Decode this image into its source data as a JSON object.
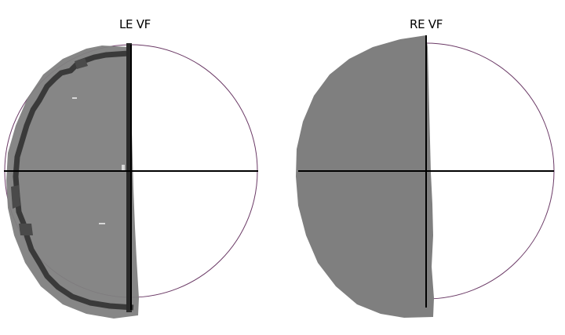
{
  "figure": {
    "panels": [
      {
        "title": "LE VF"
      },
      {
        "title": "RE VF"
      }
    ]
  },
  "colors": {
    "background": "#ffffff",
    "field_boundary": "#6b3a66",
    "defect_fill": "#7f7f7f",
    "defect_dark": "#3f3f3f",
    "meridian": "#000000"
  }
}
